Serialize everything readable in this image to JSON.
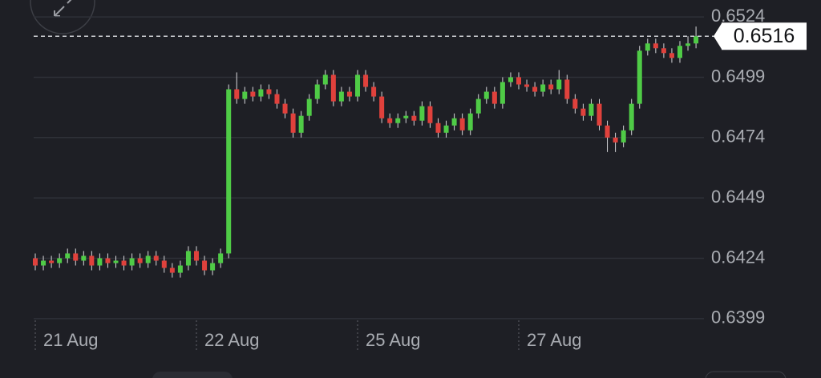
{
  "chart_data": {
    "type": "candlestick",
    "categories": [
      "21 Aug",
      null,
      null,
      null,
      null,
      null,
      null,
      null,
      null,
      null,
      null,
      null,
      null,
      null,
      null,
      null,
      null,
      null,
      null,
      null,
      "22 Aug",
      null,
      null,
      null,
      null,
      null,
      null,
      null,
      null,
      null,
      null,
      null,
      null,
      null,
      null,
      null,
      null,
      null,
      null,
      null,
      "25 Aug",
      null,
      null,
      null,
      null,
      null,
      null,
      null,
      null,
      null,
      null,
      null,
      null,
      null,
      null,
      null,
      null,
      null,
      null,
      null,
      "27 Aug",
      null,
      null,
      null,
      null,
      null,
      null,
      null,
      null,
      null,
      null,
      null,
      null,
      null,
      null,
      null,
      null,
      null,
      null,
      null,
      null,
      null,
      null
    ],
    "open": [
      0.6424,
      0.6421,
      0.6423,
      0.6422,
      0.6424,
      0.6426,
      0.6423,
      0.6425,
      0.6421,
      0.6424,
      0.6422,
      0.6423,
      0.6421,
      0.6424,
      0.6422,
      0.6425,
      0.6423,
      0.642,
      0.6418,
      0.6421,
      0.6427,
      0.6423,
      0.6419,
      0.6422,
      0.6426,
      0.6494,
      0.649,
      0.6493,
      0.6491,
      0.6494,
      0.6492,
      0.6488,
      0.6484,
      0.6476,
      0.6483,
      0.649,
      0.6496,
      0.65,
      0.6489,
      0.6493,
      0.6491,
      0.65,
      0.6495,
      0.6491,
      0.6482,
      0.648,
      0.6482,
      0.6483,
      0.6481,
      0.6487,
      0.648,
      0.6476,
      0.6479,
      0.6482,
      0.6477,
      0.6484,
      0.649,
      0.6493,
      0.6488,
      0.6497,
      0.6499,
      0.6496,
      0.6495,
      0.6493,
      0.6496,
      0.6494,
      0.6498,
      0.649,
      0.6486,
      0.6483,
      0.6488,
      0.6479,
      0.6474,
      0.6472,
      0.6477,
      0.6488,
      0.651,
      0.6513,
      0.6511,
      0.6509,
      0.6507,
      0.6512,
      0.6513
    ],
    "high": [
      0.6426,
      0.6425,
      0.6425,
      0.6426,
      0.6428,
      0.6428,
      0.6427,
      0.6427,
      0.6426,
      0.6426,
      0.6425,
      0.6425,
      0.6426,
      0.6426,
      0.6427,
      0.6427,
      0.6425,
      0.6422,
      0.6423,
      0.6429,
      0.6429,
      0.6425,
      0.6424,
      0.6428,
      0.6496,
      0.6501,
      0.6495,
      0.6495,
      0.6496,
      0.6496,
      0.6494,
      0.649,
      0.6486,
      0.6485,
      0.6492,
      0.6498,
      0.6502,
      0.6502,
      0.6495,
      0.6495,
      0.6502,
      0.6502,
      0.6497,
      0.6493,
      0.6484,
      0.6484,
      0.6485,
      0.6485,
      0.6489,
      0.6489,
      0.6482,
      0.6481,
      0.6484,
      0.6484,
      0.6486,
      0.6492,
      0.6495,
      0.6495,
      0.6499,
      0.6501,
      0.6501,
      0.6498,
      0.6497,
      0.6498,
      0.6498,
      0.6502,
      0.65,
      0.6492,
      0.6488,
      0.649,
      0.649,
      0.6481,
      0.6476,
      0.6479,
      0.649,
      0.6512,
      0.6515,
      0.6515,
      0.6513,
      0.6511,
      0.6514,
      0.6516,
      0.652
    ],
    "low": [
      0.6419,
      0.6419,
      0.642,
      0.642,
      0.6422,
      0.6421,
      0.6421,
      0.6419,
      0.6419,
      0.642,
      0.642,
      0.6419,
      0.6419,
      0.642,
      0.642,
      0.6421,
      0.6418,
      0.6416,
      0.6416,
      0.6419,
      0.6421,
      0.6417,
      0.6417,
      0.642,
      0.6424,
      0.6488,
      0.6488,
      0.6489,
      0.6489,
      0.649,
      0.6486,
      0.6482,
      0.6474,
      0.6474,
      0.6481,
      0.6488,
      0.6494,
      0.6487,
      0.6487,
      0.6489,
      0.6489,
      0.6493,
      0.6489,
      0.648,
      0.6478,
      0.6478,
      0.648,
      0.6479,
      0.6479,
      0.6478,
      0.6474,
      0.6474,
      0.6477,
      0.6475,
      0.6475,
      0.6482,
      0.6488,
      0.6486,
      0.6486,
      0.6495,
      0.6494,
      0.6493,
      0.6491,
      0.6491,
      0.6492,
      0.6492,
      0.6488,
      0.6484,
      0.6481,
      0.6481,
      0.6477,
      0.6468,
      0.6468,
      0.647,
      0.6475,
      0.6486,
      0.6508,
      0.6509,
      0.6507,
      0.6505,
      0.6505,
      0.651,
      0.6511
    ],
    "close": [
      0.6421,
      0.6423,
      0.6422,
      0.6424,
      0.6426,
      0.6423,
      0.6425,
      0.6421,
      0.6424,
      0.6422,
      0.6423,
      0.6421,
      0.6424,
      0.6422,
      0.6425,
      0.6423,
      0.642,
      0.6418,
      0.6421,
      0.6427,
      0.6423,
      0.6419,
      0.6422,
      0.6426,
      0.6494,
      0.649,
      0.6493,
      0.6491,
      0.6494,
      0.6492,
      0.6488,
      0.6484,
      0.6476,
      0.6483,
      0.649,
      0.6496,
      0.65,
      0.6489,
      0.6493,
      0.6491,
      0.65,
      0.6495,
      0.6491,
      0.6482,
      0.648,
      0.6482,
      0.6483,
      0.6481,
      0.6487,
      0.648,
      0.6476,
      0.6479,
      0.6482,
      0.6477,
      0.6484,
      0.649,
      0.6493,
      0.6488,
      0.6497,
      0.6499,
      0.6496,
      0.6495,
      0.6493,
      0.6496,
      0.6494,
      0.6498,
      0.649,
      0.6486,
      0.6483,
      0.6488,
      0.6479,
      0.6474,
      0.6472,
      0.6477,
      0.6488,
      0.651,
      0.6513,
      0.6511,
      0.6509,
      0.6507,
      0.6512,
      0.6513,
      0.6516
    ],
    "last_price": 0.6516,
    "ylim": [
      0.6386,
      0.6531
    ],
    "yticks": [
      0.6524,
      0.6499,
      0.6474,
      0.6449,
      0.6424,
      0.6399
    ],
    "grid": true,
    "up_color": "#4fcb46",
    "down_color": "#e0413c"
  }
}
